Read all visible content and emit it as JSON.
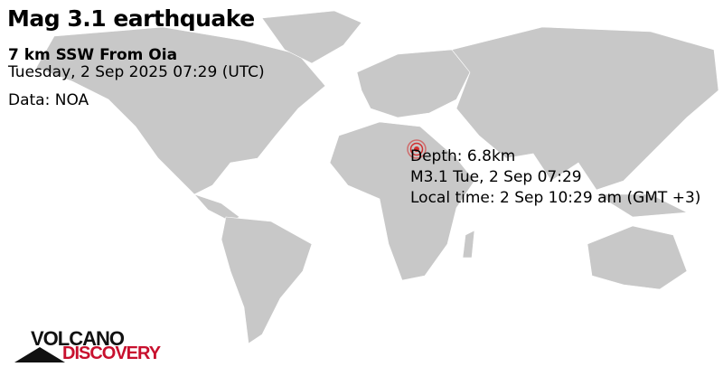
{
  "header": {
    "title": "Mag 3.1 earthquake",
    "location": "7 km SSW From Oia",
    "datetime": "Tuesday,  2 Sep 2025 07:29 (UTC)",
    "source": "Data: NOA"
  },
  "quake": {
    "depth": "Depth: 6.8km",
    "summary": "M3.1 Tue,  2 Sep 07:29",
    "local_time": "Local time: 2 Sep 10:29 am (GMT +3)",
    "marker_color": "#d32f2f"
  },
  "logo": {
    "line1": "VOLCANO",
    "line2": "DISCOVERY",
    "colors": {
      "dark": "#111111",
      "red": "#c8102e"
    }
  },
  "map": {
    "land_color": "#c8c8c8",
    "ocean_color": "#ffffff"
  }
}
